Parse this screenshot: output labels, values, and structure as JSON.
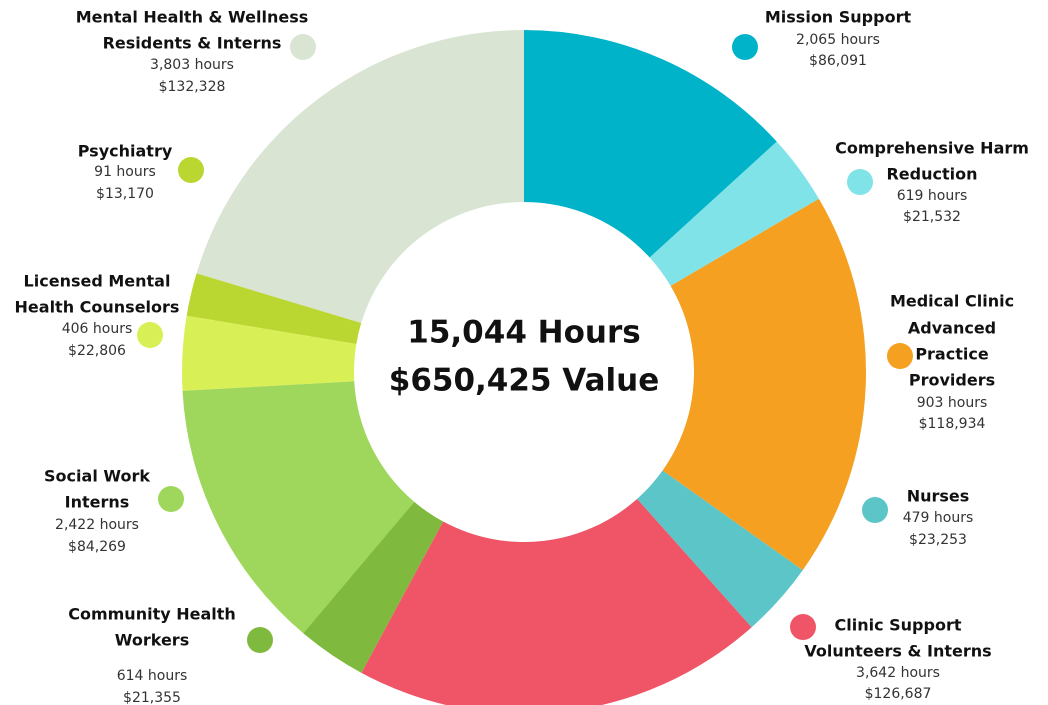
{
  "chart_data": {
    "type": "donut",
    "center_lines": [
      "15,044 Hours",
      "$650,425 Value"
    ],
    "categories": [
      [
        "Mission Support"
      ],
      [
        "Comprehensive Harm",
        "Reduction"
      ],
      [
        "Medical Clinic",
        "Advanced",
        "Practice",
        "Providers"
      ],
      [
        "Nurses"
      ],
      [
        "Clinic Support",
        "Volunteers & Interns"
      ],
      [
        "Community Health",
        "Workers"
      ],
      [
        "Social Work",
        "Interns"
      ],
      [
        "Licensed Mental",
        "Health Counselors"
      ],
      [
        "Psychiatry"
      ],
      [
        "Mental Health & Wellness",
        "Residents & Interns"
      ]
    ],
    "values": [
      86091,
      21532,
      118934,
      23253,
      126687,
      21355,
      84269,
      22806,
      13170,
      132328
    ],
    "value_labels": [
      "$86,091",
      "$21,532",
      "$118,934",
      "$23,253",
      "$126,687",
      "$21,355",
      "$84,269",
      "$22,806",
      "$13,170",
      "$132,328"
    ],
    "hours": [
      2065,
      619,
      903,
      479,
      3642,
      614,
      2422,
      406,
      91,
      3803
    ],
    "hours_labels": [
      "2,065 hours",
      "619 hours",
      "903 hours",
      "479 hours",
      "3,642 hours",
      "614 hours",
      "2,422 hours",
      "406 hours",
      "91 hours",
      "3,803 hours"
    ],
    "colors": [
      "#00b3c9",
      "#80e3e8",
      "#f5a020",
      "#5bc5c8",
      "#ef5567",
      "#7fba3f",
      "#9fd65c",
      "#d8ef55",
      "#bad630",
      "#d9e4d2"
    ]
  }
}
